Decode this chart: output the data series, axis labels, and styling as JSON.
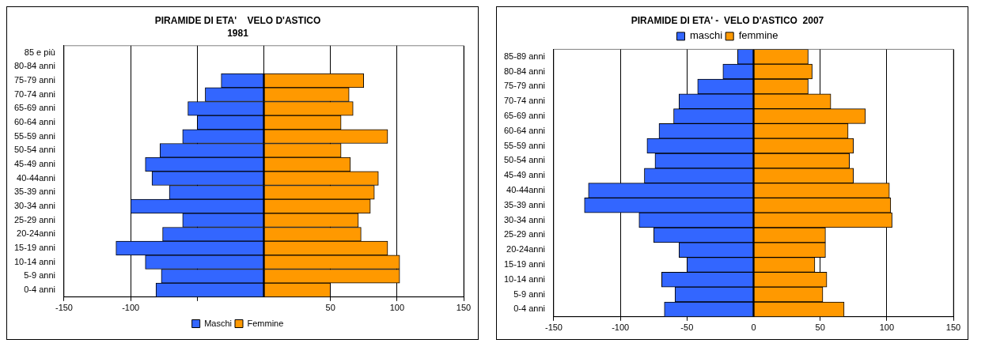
{
  "chart_data": [
    {
      "type": "bar",
      "orientation": "horizontal",
      "stacked": true,
      "title": "PIRAMIDE DI ETA'    VELO D'ASTICO",
      "subtitle": "1981",
      "categories": [
        "85 e più",
        "80-84 anni",
        "75-79 anni",
        "70-74 anni",
        "65-69 anni",
        "60-64 anni",
        "55-59 anni",
        "50-54 anni",
        "45-49 anni",
        "40-44anni",
        "35-39 anni",
        "30-34 anni",
        "25-29 anni",
        "20-24anni",
        "15-19 anni",
        "10-14 anni",
        "5-9 anni",
        "0-4 anni"
      ],
      "series": [
        {
          "name": "Maschi",
          "color": "#3366ff",
          "values": [
            0,
            0,
            -32,
            -44,
            -57,
            -50,
            -61,
            -78,
            -89,
            -84,
            -71,
            -100,
            -61,
            -76,
            -111,
            -89,
            -77,
            -81
          ]
        },
        {
          "name": "Femmine",
          "color": "#ff9900",
          "values": [
            0,
            0,
            75,
            64,
            67,
            58,
            93,
            58,
            65,
            86,
            83,
            80,
            71,
            73,
            93,
            102,
            102,
            50
          ]
        }
      ],
      "xlim": [
        -150,
        150
      ],
      "xticks": [
        -150,
        -100,
        {
          "value": -50,
          "label": null
        },
        {
          "value": 0,
          "label": null
        },
        50,
        100,
        150
      ],
      "grid": "x",
      "legend": "bottom"
    },
    {
      "type": "bar",
      "orientation": "horizontal",
      "stacked": true,
      "title": "PIRAMIDE DI ETA' -  VELO D'ASTICO  2007",
      "categories": [
        "85-89 anni",
        "80-84 anni",
        "75-79 anni",
        "70-74 anni",
        "65-69 anni",
        "60-64 anni",
        "55-59 anni",
        "50-54 anni",
        "45-49 anni",
        "40-44anni",
        "35-39 anni",
        "30-34 anni",
        "25-29 anni",
        "20-24anni",
        "15-19 anni",
        "10-14 anni",
        "5-9 anni",
        "0-4 anni"
      ],
      "series": [
        {
          "name": "maschi",
          "color": "#3366ff",
          "values": [
            -12,
            -23,
            -42,
            -56,
            -60,
            -71,
            -80,
            -74,
            -82,
            -124,
            -127,
            -86,
            -75,
            -56,
            -50,
            -69,
            -59,
            -67
          ]
        },
        {
          "name": "femmine",
          "color": "#ff9900",
          "values": [
            41,
            44,
            41,
            58,
            84,
            71,
            75,
            72,
            75,
            102,
            103,
            104,
            54,
            54,
            46,
            55,
            52,
            68
          ]
        }
      ],
      "xlim": [
        -150,
        150
      ],
      "xticks": [
        -150,
        -100,
        -50,
        0,
        50,
        100,
        150
      ],
      "grid": "x",
      "legend": "top"
    }
  ]
}
